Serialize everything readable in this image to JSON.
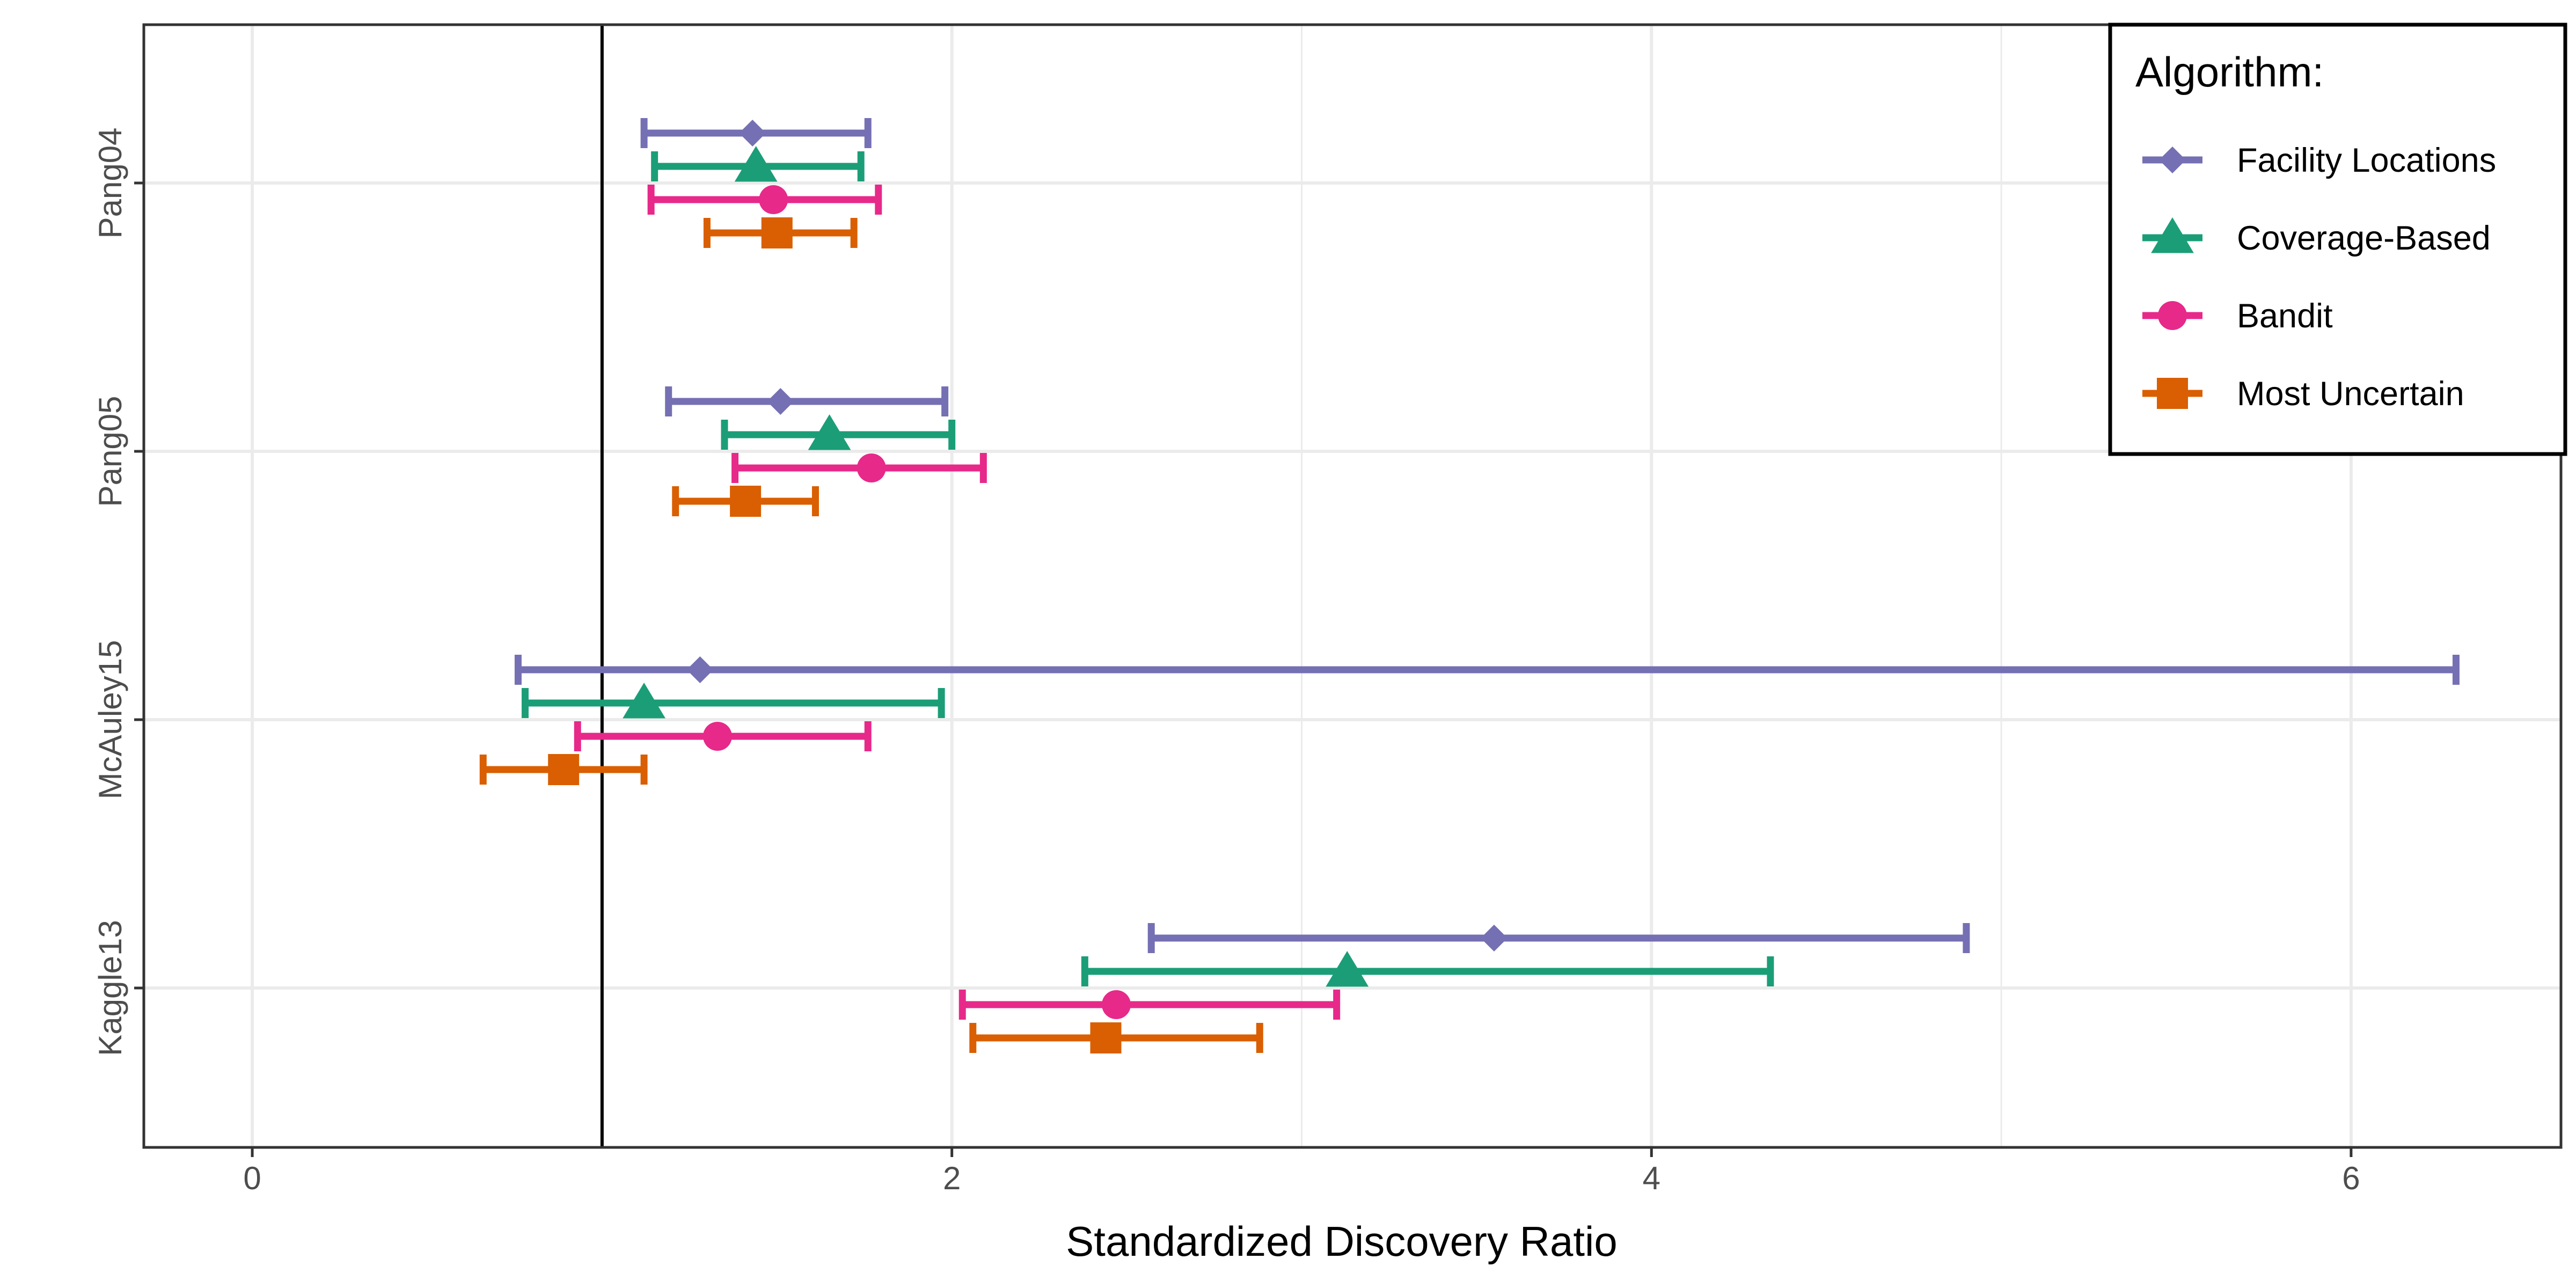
{
  "chart_data": {
    "type": "errorbar",
    "title": "",
    "xlabel": "Standardized Discovery Ratio",
    "ylabel": "",
    "xlim": [
      -0.31,
      6.6
    ],
    "x_ticks": [
      0,
      2,
      4,
      6
    ],
    "reference_line_x": 1,
    "grid": true,
    "categories": [
      "Pang04",
      "Pang05",
      "McAuley15",
      "Kaggle13"
    ],
    "legend": {
      "title": "Algorithm:",
      "position": "top-right"
    },
    "series": [
      {
        "name": "Facility Locations",
        "color": "#7570b3",
        "marker": "diamond",
        "points": [
          {
            "category": "Pang04",
            "value": 1.43,
            "low": 1.12,
            "high": 1.76
          },
          {
            "category": "Pang05",
            "value": 1.51,
            "low": 1.19,
            "high": 1.98
          },
          {
            "category": "McAuley15",
            "value": 1.28,
            "low": 0.76,
            "high": 6.3
          },
          {
            "category": "Kaggle13",
            "value": 3.55,
            "low": 2.57,
            "high": 4.9
          }
        ]
      },
      {
        "name": "Coverage-Based",
        "color": "#1b9e77",
        "marker": "triangle",
        "points": [
          {
            "category": "Pang04",
            "value": 1.44,
            "low": 1.15,
            "high": 1.74
          },
          {
            "category": "Pang05",
            "value": 1.65,
            "low": 1.35,
            "high": 2.0
          },
          {
            "category": "McAuley15",
            "value": 1.12,
            "low": 0.78,
            "high": 1.97
          },
          {
            "category": "Kaggle13",
            "value": 3.13,
            "low": 2.38,
            "high": 4.34
          }
        ]
      },
      {
        "name": "Bandit",
        "color": "#e7298a",
        "marker": "circle",
        "points": [
          {
            "category": "Pang04",
            "value": 1.49,
            "low": 1.14,
            "high": 1.79
          },
          {
            "category": "Pang05",
            "value": 1.77,
            "low": 1.38,
            "high": 2.09
          },
          {
            "category": "McAuley15",
            "value": 1.33,
            "low": 0.93,
            "high": 1.76
          },
          {
            "category": "Kaggle13",
            "value": 2.47,
            "low": 2.03,
            "high": 3.1
          }
        ]
      },
      {
        "name": "Most Uncertain",
        "color": "#d95f02",
        "marker": "square",
        "points": [
          {
            "category": "Pang04",
            "value": 1.5,
            "low": 1.3,
            "high": 1.72
          },
          {
            "category": "Pang05",
            "value": 1.41,
            "low": 1.21,
            "high": 1.61
          },
          {
            "category": "McAuley15",
            "value": 0.89,
            "low": 0.66,
            "high": 1.12
          },
          {
            "category": "Kaggle13",
            "value": 2.44,
            "low": 2.06,
            "high": 2.88
          }
        ]
      }
    ]
  }
}
